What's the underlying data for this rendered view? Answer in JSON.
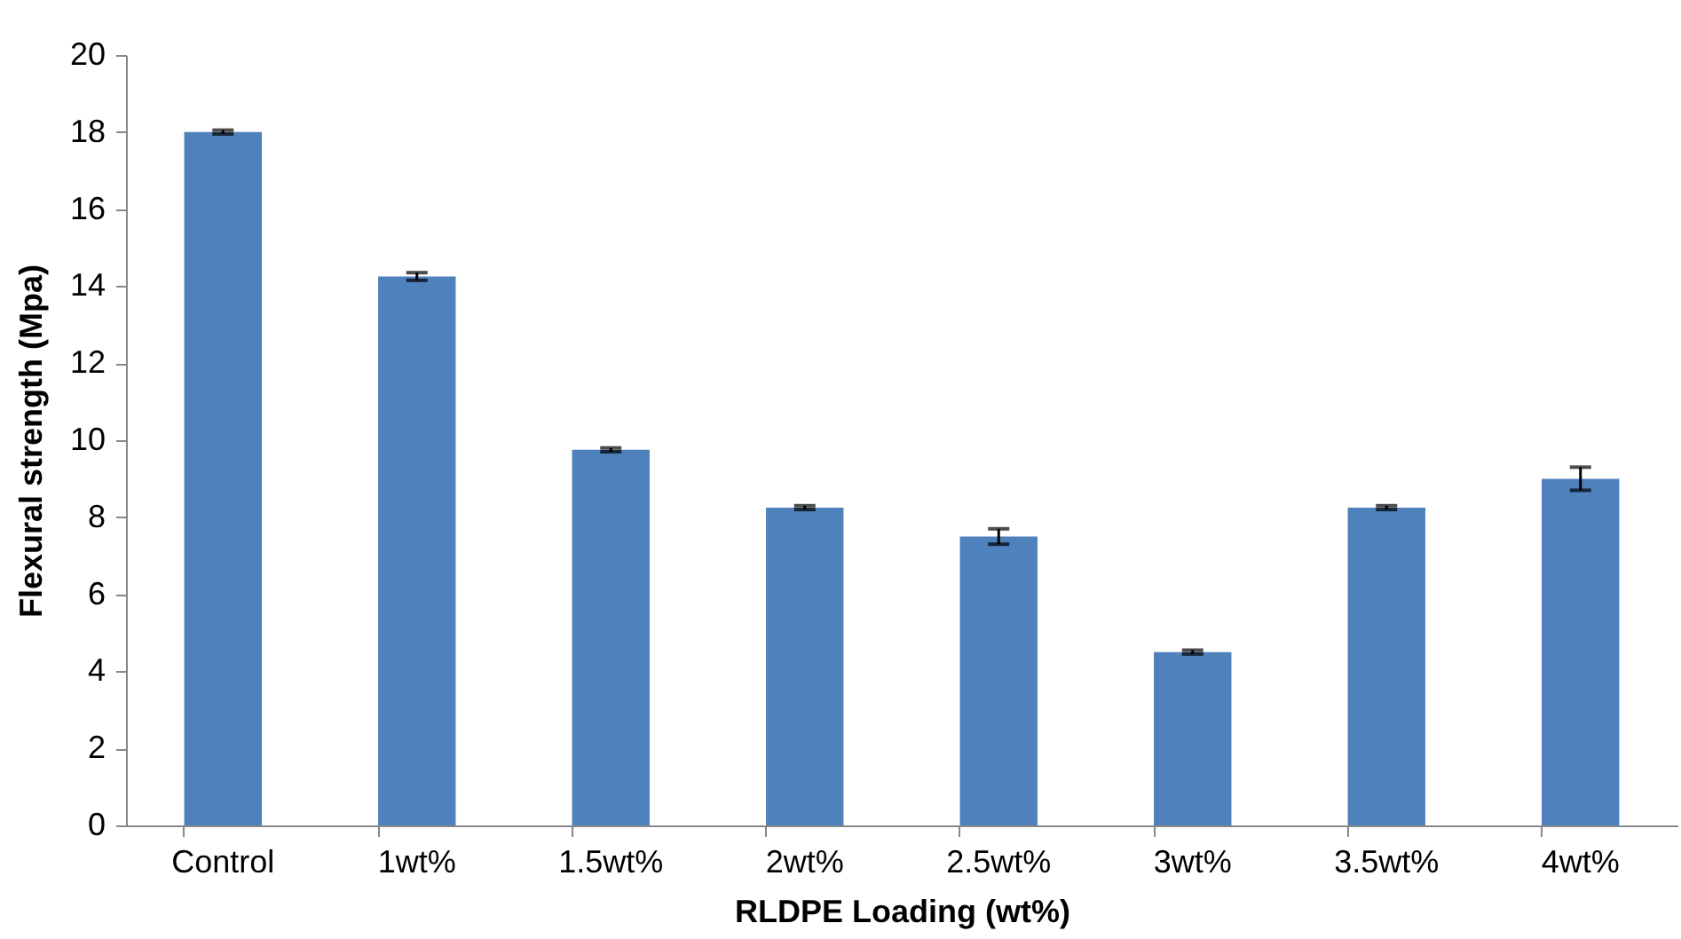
{
  "chart_data": {
    "type": "bar",
    "xlabel": "RLDPE Loading (wt%)",
    "ylabel": "Flexural strength (Mpa)",
    "categories": [
      "Control",
      "1wt%",
      "1.5wt%",
      "2wt%",
      "2.5wt%",
      "3wt%",
      "3.5wt%",
      "4wt%"
    ],
    "series": [
      {
        "color": "#4f81bd",
        "values": [
          18,
          14.25,
          9.75,
          8.25,
          7.5,
          4.5,
          8.25,
          9
        ],
        "errors": [
          0.05,
          0.1,
          0.05,
          0.05,
          0.2,
          0.05,
          0.05,
          0.3
        ]
      }
    ],
    "ylim": [
      0,
      20
    ],
    "yticks": [
      0,
      2,
      4,
      6,
      8,
      10,
      12,
      14,
      16,
      18,
      20
    ],
    "grid": false,
    "legend": false
  }
}
